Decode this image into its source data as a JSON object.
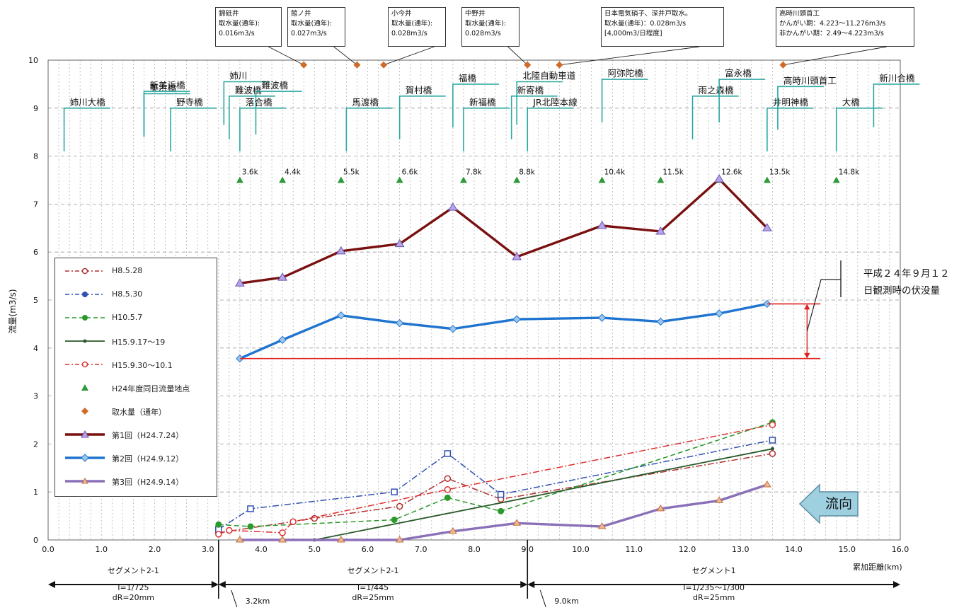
{
  "chart_data": {
    "type": "line",
    "xlabel": "累加距離(km)",
    "ylabel": "流量(m3/s)",
    "xlim": [
      0,
      16
    ],
    "ylim": [
      0,
      10
    ],
    "x_ticks": [
      "0.0",
      "1.0",
      "2.0",
      "3.0",
      "4.0",
      "5.0",
      "6.0",
      "7.0",
      "8.0",
      "9.0",
      "10.0",
      "11.0",
      "12.0",
      "13.0",
      "14.0",
      "15.0",
      "16.0"
    ],
    "y_ticks": [
      "0",
      "1",
      "2",
      "3",
      "4",
      "5",
      "6",
      "7",
      "8",
      "9",
      "10"
    ],
    "grid": true,
    "legend_position": "left",
    "series": [
      {
        "name": "H8.5.28",
        "style": "dashdot",
        "color": "#b03030",
        "marker": "circle-open",
        "x": [
          3.2,
          5.0,
          6.6,
          7.5,
          8.5,
          13.6
        ],
        "y": [
          0.15,
          0.45,
          0.7,
          1.28,
          0.85,
          1.8
        ]
      },
      {
        "name": "H8.5.30",
        "style": "dashdot",
        "color": "#3050b0",
        "marker": "square-open",
        "x": [
          3.2,
          3.8,
          6.5,
          7.5,
          8.5,
          13.6
        ],
        "y": [
          0.22,
          0.65,
          1.0,
          1.8,
          0.95,
          2.08
        ]
      },
      {
        "name": "H10.5.7",
        "style": "dashed",
        "color": "#2a9a2a",
        "marker": "circle",
        "x": [
          3.2,
          3.8,
          6.5,
          7.5,
          8.5,
          13.6
        ],
        "y": [
          0.32,
          0.28,
          0.42,
          0.88,
          0.6,
          2.45
        ]
      },
      {
        "name": "H15.9.17～19",
        "style": "solid",
        "color": "#2a5a2a",
        "marker": "dot",
        "x": [
          5.0,
          13.6
        ],
        "y": [
          0.0,
          1.9
        ]
      },
      {
        "name": "H15.9.30～10.1",
        "style": "dashdot",
        "color": "#e03030",
        "marker": "circle-open",
        "x": [
          3.2,
          3.4,
          4.4,
          4.6,
          7.5,
          13.6
        ],
        "y": [
          0.12,
          0.2,
          0.15,
          0.38,
          1.05,
          2.4
        ]
      },
      {
        "name": "第1回（H24.7.24）",
        "style": "thick",
        "color": "#7a1010",
        "marker": "triangle",
        "x": [
          3.6,
          4.4,
          5.5,
          6.6,
          7.6,
          8.8,
          10.4,
          11.5,
          12.6,
          13.5
        ],
        "y": [
          5.35,
          5.47,
          6.02,
          6.17,
          6.93,
          5.9,
          6.55,
          6.43,
          7.52,
          6.5
        ]
      },
      {
        "name": "第2回（H24.9.12）",
        "style": "thick",
        "color": "#1f74d0",
        "marker": "diamond",
        "x": [
          3.6,
          4.4,
          5.5,
          6.6,
          7.6,
          8.8,
          10.4,
          11.5,
          12.6,
          13.5
        ],
        "y": [
          3.78,
          4.17,
          4.68,
          4.52,
          4.4,
          4.6,
          4.63,
          4.55,
          4.72,
          4.92
        ]
      },
      {
        "name": "第3回（H24.9.14）",
        "style": "thick",
        "color": "#8a70b8",
        "marker": "triangle-small",
        "x": [
          3.6,
          4.4,
          5.5,
          6.6,
          7.6,
          8.8,
          10.4,
          11.5,
          12.6,
          13.5
        ],
        "y": [
          0.0,
          0.0,
          0.0,
          0.0,
          0.18,
          0.35,
          0.28,
          0.65,
          0.82,
          1.15
        ]
      }
    ],
    "legend_entries": [
      {
        "label": "H8.5.28",
        "key": "s0"
      },
      {
        "label": "H8.5.30",
        "key": "s1"
      },
      {
        "label": "H10.5.7",
        "key": "s2"
      },
      {
        "label": "H15.9.17～19",
        "key": "s3"
      },
      {
        "label": "H15.9.30～10.1",
        "key": "s4"
      },
      {
        "label": "H24年度同日流量地点",
        "key": "pts"
      },
      {
        "label": "取水量（通年）",
        "key": "intake"
      },
      {
        "label": "第1回（H24.7.24）",
        "key": "s5"
      },
      {
        "label": "第2回（H24.9.12）",
        "key": "s6"
      },
      {
        "label": "第3回（H24.9.14）",
        "key": "s7"
      }
    ],
    "measurement_points": {
      "x": [
        3.6,
        4.4,
        5.5,
        6.6,
        7.8,
        8.8,
        10.4,
        11.5,
        12.6,
        13.5,
        14.8
      ],
      "y": 7.5,
      "labels": [
        "3.6k",
        "4.4k",
        "5.5k",
        "6.6k",
        "7.8k",
        "8.8k",
        "10.4k",
        "11.5k",
        "12.6k",
        "13.5k",
        "14.8k"
      ]
    },
    "intakes": {
      "x": [
        4.8,
        5.8,
        6.3,
        9.0,
        9.6,
        13.8
      ],
      "y": 9.9
    },
    "bridges": [
      {
        "name": "姉川大橋",
        "x": 0.3,
        "top": 9.0
      },
      {
        "name": "美浜橋",
        "x": 1.8,
        "top": 9.3
      },
      {
        "name": "新美浜橋",
        "x": 1.8,
        "top": 9.35
      },
      {
        "name": "野寺橋",
        "x": 2.3,
        "top": 9.0
      },
      {
        "name": "姉川",
        "x": 3.3,
        "top": 9.55
      },
      {
        "name": "難波橋",
        "x": 3.4,
        "top": 9.25
      },
      {
        "name": "難波橋",
        "x": 3.9,
        "top": 9.35
      },
      {
        "name": "落合橋",
        "x": 3.6,
        "top": 9.0
      },
      {
        "name": "馬渡橋",
        "x": 5.6,
        "top": 9.0
      },
      {
        "name": "賀村橋",
        "x": 6.6,
        "top": 9.25
      },
      {
        "name": "福橋",
        "x": 7.6,
        "top": 9.5
      },
      {
        "name": "新福橋",
        "x": 7.8,
        "top": 9.0
      },
      {
        "name": "新寄橋",
        "x": 8.7,
        "top": 9.25
      },
      {
        "name": "北陸自動車道",
        "x": 8.8,
        "top": 9.55
      },
      {
        "name": "JR北陸本線",
        "x": 9.0,
        "top": 9.0
      },
      {
        "name": "阿弥陀橋",
        "x": 10.4,
        "top": 9.6
      },
      {
        "name": "雨之森橋",
        "x": 12.1,
        "top": 9.25
      },
      {
        "name": "富永橋",
        "x": 12.6,
        "top": 9.6
      },
      {
        "name": "井明神橋",
        "x": 13.5,
        "top": 9.0
      },
      {
        "name": "高時川頭首工",
        "x": 13.7,
        "top": 9.45
      },
      {
        "name": "大橋",
        "x": 14.8,
        "top": 9.0
      },
      {
        "name": "新川合橋",
        "x": 15.5,
        "top": 9.5
      }
    ],
    "callouts": [
      {
        "lines": [
          "錦砥井",
          "取水量(通年):",
          "0.016m3/s"
        ]
      },
      {
        "lines": [
          "館ノ井",
          "取水量(通年):",
          "0.027m3/s"
        ]
      },
      {
        "lines": [
          "小今井",
          "取水量(通年):",
          "0.028m3/s"
        ]
      },
      {
        "lines": [
          "中野井",
          "取水量(通年):",
          "0.028m3/s"
        ]
      },
      {
        "lines": [
          "日本電気硝子、深井戸取水。",
          "取水量(通年)：0.028m3/s",
          "[4,000m3/日程度]"
        ]
      },
      {
        "lines": [
          "高時川頭首工",
          "かんがい期：4.223～11.276m3/s",
          "非かんがい期：2.49～4.223m3/s"
        ]
      }
    ],
    "annotation": [
      "平成２４年９月１２",
      "日観測時の伏没量"
    ],
    "flow_label": "流向",
    "segments": [
      {
        "lines": [
          "セグメント2-1",
          "I=1/725",
          "dR=20mm"
        ]
      },
      {
        "lines": [
          "セグメント2-1",
          "I=1/445",
          "dR=25mm"
        ]
      },
      {
        "lines": [
          "セグメント1",
          "I=1/235～1/300",
          "dR=25mm"
        ]
      }
    ],
    "segment_boundaries": [
      {
        "x": 3.2,
        "label": "3.2km"
      },
      {
        "x": 9.0,
        "label": "9.0km"
      }
    ]
  }
}
